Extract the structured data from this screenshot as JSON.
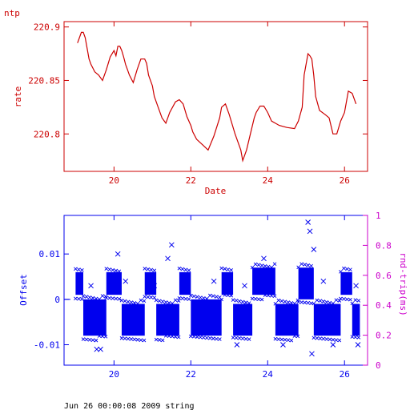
{
  "footer": "Jun 26 00:00:08 2009 string",
  "colors": {
    "top": "#cc0000",
    "offset": "#0000ee",
    "rtt": "#cc00cc"
  },
  "chart_data": [
    {
      "type": "line",
      "title": "ntp",
      "xlabel": "Date",
      "ylabel": "rate",
      "xlim": [
        18.7,
        26.6
      ],
      "ylim": [
        220.765,
        220.905
      ],
      "xticks": [
        20,
        22,
        24,
        26
      ],
      "yticks": [
        220.8,
        220.85,
        220.9
      ],
      "series": [
        {
          "x": [
            19.05,
            19.15,
            19.2,
            19.25,
            19.3,
            19.35,
            19.4,
            19.5,
            19.6,
            19.7,
            19.8,
            19.9,
            19.95,
            20.0,
            20.05,
            20.1,
            20.15,
            20.2,
            20.25,
            20.3,
            20.35,
            20.4,
            20.5,
            20.6,
            20.7,
            20.8,
            20.85,
            20.9,
            21.0,
            21.05,
            21.15,
            21.25,
            21.35,
            21.45,
            21.6,
            21.7,
            21.8,
            21.9,
            22.0,
            22.05,
            22.15,
            22.3,
            22.45,
            22.6,
            22.75,
            22.8,
            22.9,
            23.0,
            23.15,
            23.3,
            23.35,
            23.45,
            23.55,
            23.65,
            23.7,
            23.8,
            23.9,
            24.0,
            24.1,
            24.2,
            24.3,
            24.5,
            24.7,
            24.8,
            24.9,
            24.95,
            25.05,
            25.1,
            25.15,
            25.2,
            25.25,
            25.35,
            25.5,
            25.6,
            25.7,
            25.8,
            25.9,
            26.0,
            26.1,
            26.2,
            26.3
          ],
          "y": [
            220.885,
            220.895,
            220.895,
            220.89,
            220.88,
            220.87,
            220.865,
            220.858,
            220.855,
            220.85,
            220.86,
            220.872,
            220.875,
            220.878,
            220.873,
            220.882,
            220.882,
            220.878,
            220.872,
            220.865,
            220.86,
            220.855,
            220.848,
            220.86,
            220.87,
            220.87,
            220.866,
            220.855,
            220.845,
            220.835,
            220.825,
            220.815,
            220.81,
            220.82,
            220.83,
            220.832,
            220.828,
            220.816,
            220.808,
            220.802,
            220.795,
            220.79,
            220.785,
            220.798,
            220.815,
            220.825,
            220.828,
            220.818,
            220.8,
            220.785,
            220.775,
            220.785,
            220.8,
            220.815,
            220.82,
            220.826,
            220.826,
            220.82,
            220.812,
            220.81,
            220.808,
            220.806,
            220.805,
            220.812,
            220.825,
            220.855,
            220.875,
            220.873,
            220.87,
            220.855,
            220.835,
            220.822,
            220.818,
            220.815,
            220.8,
            220.8,
            220.812,
            220.82,
            220.84,
            220.838,
            220.828
          ]
        }
      ]
    },
    {
      "type": "scatter",
      "xlabel": "",
      "ylabel": "Offset",
      "y2label": "rnd-trip(ms)",
      "xlim": [
        18.7,
        26.6
      ],
      "ylim": [
        -0.0145,
        0.0185
      ],
      "y2lim": [
        0,
        1
      ],
      "xticks": [
        20,
        22,
        24,
        26
      ],
      "yticks": [
        -0.01,
        0,
        0.01
      ],
      "y2ticks": [
        0,
        0.2,
        0.4,
        0.6,
        0.8,
        1
      ],
      "bands": [
        {
          "x0": 19.0,
          "x1": 19.2,
          "top": 0.006,
          "bottom": 0.001,
          "axis": "left"
        },
        {
          "x0": 19.2,
          "x1": 19.8,
          "top": 0.0,
          "bottom": -0.008,
          "axis": "left"
        },
        {
          "x0": 19.8,
          "x1": 20.2,
          "top": 0.006,
          "bottom": 0.001,
          "axis": "left"
        },
        {
          "x0": 20.2,
          "x1": 20.8,
          "top": -0.001,
          "bottom": -0.008,
          "axis": "left"
        },
        {
          "x0": 20.8,
          "x1": 21.1,
          "top": 0.006,
          "bottom": 0.001,
          "axis": "left"
        },
        {
          "x0": 21.1,
          "x1": 21.7,
          "top": -0.001,
          "bottom": -0.008,
          "axis": "left"
        },
        {
          "x0": 21.7,
          "x1": 22.0,
          "top": 0.006,
          "bottom": 0.001,
          "axis": "left"
        },
        {
          "x0": 22.0,
          "x1": 22.8,
          "top": 0.0,
          "bottom": -0.008,
          "axis": "left"
        },
        {
          "x0": 22.8,
          "x1": 23.1,
          "top": 0.006,
          "bottom": 0.001,
          "axis": "left"
        },
        {
          "x0": 23.1,
          "x1": 23.6,
          "top": -0.001,
          "bottom": -0.008,
          "axis": "left"
        },
        {
          "x0": 23.6,
          "x1": 24.2,
          "top": 0.007,
          "bottom": 0.001,
          "axis": "left"
        },
        {
          "x0": 24.2,
          "x1": 24.8,
          "top": -0.001,
          "bottom": -0.008,
          "axis": "left"
        },
        {
          "x0": 24.8,
          "x1": 25.2,
          "top": 0.007,
          "bottom": 0.0,
          "axis": "left"
        },
        {
          "x0": 25.2,
          "x1": 25.9,
          "top": -0.001,
          "bottom": -0.008,
          "axis": "left"
        },
        {
          "x0": 25.9,
          "x1": 26.2,
          "top": 0.006,
          "bottom": 0.001,
          "axis": "left"
        },
        {
          "x0": 26.2,
          "x1": 26.4,
          "top": -0.001,
          "bottom": -0.008,
          "axis": "left"
        }
      ],
      "outliers": [
        {
          "x": 19.4,
          "y": 0.003
        },
        {
          "x": 19.55,
          "y": -0.011
        },
        {
          "x": 19.65,
          "y": -0.011
        },
        {
          "x": 20.1,
          "y": 0.01
        },
        {
          "x": 20.3,
          "y": 0.004
        },
        {
          "x": 21.05,
          "y": 0.003
        },
        {
          "x": 21.5,
          "y": 0.012
        },
        {
          "x": 21.4,
          "y": 0.009
        },
        {
          "x": 22.6,
          "y": 0.004
        },
        {
          "x": 23.2,
          "y": -0.01
        },
        {
          "x": 23.4,
          "y": 0.003
        },
        {
          "x": 23.9,
          "y": 0.009
        },
        {
          "x": 24.4,
          "y": -0.01
        },
        {
          "x": 25.05,
          "y": 0.017
        },
        {
          "x": 25.1,
          "y": 0.015
        },
        {
          "x": 25.15,
          "y": -0.012
        },
        {
          "x": 25.2,
          "y": 0.011
        },
        {
          "x": 25.45,
          "y": 0.004
        },
        {
          "x": 25.7,
          "y": -0.01
        },
        {
          "x": 26.3,
          "y": 0.003
        },
        {
          "x": 26.35,
          "y": -0.01
        }
      ]
    }
  ]
}
